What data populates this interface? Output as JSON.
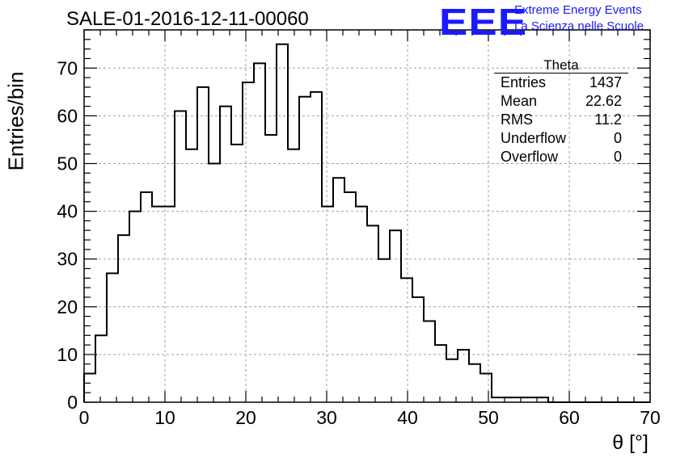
{
  "title": "SALE-01-2016-12-11-00060",
  "logo": {
    "mark": "EEE",
    "line1": "Extreme Energy Events",
    "line2": "La Scienza nelle Scuole",
    "color": "#1a1aff"
  },
  "stats": {
    "name": "Theta",
    "rows": [
      {
        "label": "Entries",
        "value": "1437"
      },
      {
        "label": "Mean",
        "value": "22.62"
      },
      {
        "label": "RMS",
        "value": "11.2"
      },
      {
        "label": "Underflow",
        "value": "0"
      },
      {
        "label": "Overflow",
        "value": "0"
      }
    ]
  },
  "chart_data": {
    "type": "histogram",
    "xlabel": "θ [°]",
    "ylabel": "Entries/bin",
    "xlim": [
      0,
      70
    ],
    "ylim": [
      0,
      78
    ],
    "grid": true,
    "bin_width": 1.4,
    "bin_start": 0,
    "values": [
      6,
      14,
      27,
      35,
      40,
      44,
      41,
      41,
      61,
      53,
      66,
      50,
      62,
      54,
      67,
      71,
      56,
      75,
      53,
      64,
      65,
      41,
      47,
      44,
      41,
      37,
      30,
      36,
      26,
      22,
      17,
      12,
      9,
      11,
      8,
      6,
      1,
      1,
      1,
      1,
      1,
      0,
      0,
      0,
      0,
      0,
      0,
      0,
      0,
      0
    ],
    "x_ticks": [
      0,
      10,
      20,
      30,
      40,
      50,
      60,
      70
    ],
    "y_ticks": [
      0,
      10,
      20,
      30,
      40,
      50,
      60,
      70
    ],
    "line_color": "#000000",
    "grid_color": "#a0a0a0"
  }
}
